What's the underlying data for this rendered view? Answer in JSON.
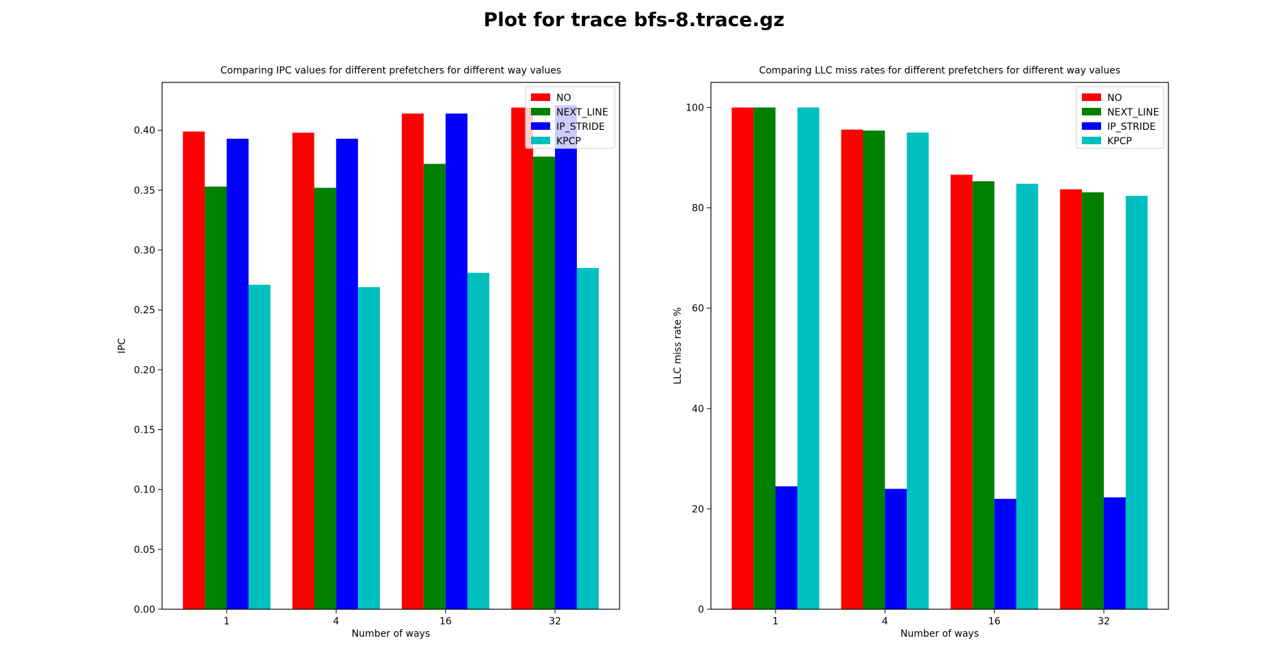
{
  "suptitle": "Plot for trace bfs-8.trace.gz",
  "colors": {
    "NO": "#ff0000",
    "NEXT_LINE": "#008000",
    "IP_STRIDE": "#0000ff",
    "KPCP": "#00bfbf"
  },
  "chart_data": [
    {
      "type": "bar",
      "title": "Comparing IPC values for different prefetchers for different way values",
      "xlabel": "Number of ways",
      "ylabel": "IPC",
      "categories": [
        "1",
        "4",
        "16",
        "32"
      ],
      "ylim": [
        0,
        0.44
      ],
      "yticks": [
        0.0,
        0.05,
        0.1,
        0.15,
        0.2,
        0.25,
        0.3,
        0.35,
        0.4
      ],
      "ytick_labels": [
        "0.00",
        "0.05",
        "0.10",
        "0.15",
        "0.20",
        "0.25",
        "0.30",
        "0.35",
        "0.40"
      ],
      "legend_position": "top-right",
      "series": [
        {
          "name": "NO",
          "values": [
            0.399,
            0.398,
            0.414,
            0.419
          ]
        },
        {
          "name": "NEXT_LINE",
          "values": [
            0.353,
            0.352,
            0.372,
            0.378
          ]
        },
        {
          "name": "IP_STRIDE",
          "values": [
            0.393,
            0.393,
            0.414,
            0.421
          ]
        },
        {
          "name": "KPCP",
          "values": [
            0.271,
            0.269,
            0.281,
            0.285
          ]
        }
      ]
    },
    {
      "type": "bar",
      "title": "Comparing LLC miss rates for different prefetchers for different way values",
      "xlabel": "Number of ways",
      "ylabel": "LLC miss rate %",
      "categories": [
        "1",
        "4",
        "16",
        "32"
      ],
      "ylim": [
        0,
        105
      ],
      "yticks": [
        0,
        20,
        40,
        60,
        80,
        100
      ],
      "ytick_labels": [
        "0",
        "20",
        "40",
        "60",
        "80",
        "100"
      ],
      "legend_position": "top-right",
      "series": [
        {
          "name": "NO",
          "values": [
            100.0,
            95.6,
            86.6,
            83.7
          ]
        },
        {
          "name": "NEXT_LINE",
          "values": [
            100.0,
            95.4,
            85.3,
            83.1
          ]
        },
        {
          "name": "IP_STRIDE",
          "values": [
            24.5,
            24.0,
            22.0,
            22.3
          ]
        },
        {
          "name": "KPCP",
          "values": [
            100.0,
            95.0,
            84.8,
            82.4
          ]
        }
      ]
    }
  ]
}
